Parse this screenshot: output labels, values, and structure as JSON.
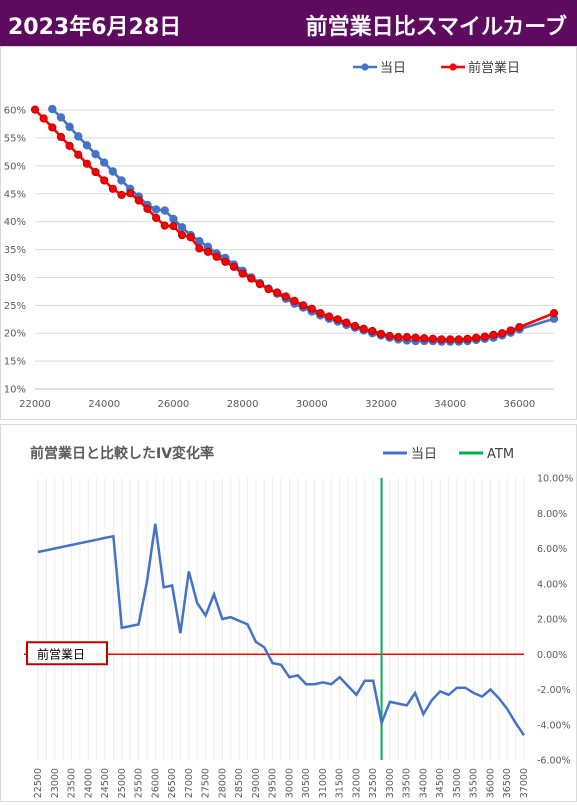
{
  "header": {
    "date": "2023年6月28日",
    "title": "前営業日比スマイルカーブ"
  },
  "colors": {
    "header_bg": "#5e0a5e",
    "today": "#4472c4",
    "prev": "#ff0000",
    "atm": "#00b050",
    "line2": "#4472c4"
  },
  "chart_data": [
    {
      "type": "line",
      "title": "",
      "legend_position": "top-right",
      "grid": true,
      "xlim": [
        22000,
        37000
      ],
      "ylim": [
        10,
        62
      ],
      "x_ticks": [
        "22000",
        "24000",
        "26000",
        "28000",
        "30000",
        "32000",
        "34000",
        "36000"
      ],
      "y_ticks": [
        "10%",
        "15%",
        "20%",
        "25%",
        "30%",
        "35%",
        "40%",
        "45%",
        "50%",
        "55%",
        "60%"
      ],
      "series": [
        {
          "name": "当日",
          "x": [
            22500,
            22750,
            23000,
            23250,
            23500,
            23750,
            24000,
            24250,
            24500,
            24750,
            25000,
            25250,
            25500,
            25750,
            26000,
            26250,
            26500,
            26750,
            27000,
            27250,
            27500,
            27750,
            28000,
            28250,
            28500,
            28750,
            29000,
            29250,
            29500,
            29750,
            30000,
            30250,
            30500,
            30750,
            31000,
            31250,
            31500,
            31750,
            32000,
            32250,
            32500,
            32750,
            33000,
            33250,
            33500,
            33750,
            34000,
            34250,
            34500,
            34750,
            35000,
            35250,
            35500,
            35750,
            36000,
            37000
          ],
          "y": [
            60.2,
            58.7,
            57.0,
            55.3,
            53.7,
            52.1,
            50.6,
            49.0,
            47.4,
            45.9,
            44.5,
            43.0,
            42.2,
            42.0,
            40.5,
            39.0,
            37.6,
            36.5,
            35.5,
            34.3,
            33.5,
            32.3,
            31.2,
            30.0,
            29.0,
            28.0,
            27.1,
            26.2,
            25.3,
            24.6,
            23.9,
            23.2,
            22.6,
            22.1,
            21.5,
            21.0,
            20.5,
            20.0,
            19.6,
            19.2,
            18.9,
            18.7,
            18.6,
            18.6,
            18.6,
            18.5,
            18.5,
            18.5,
            18.6,
            18.8,
            19.0,
            19.2,
            19.6,
            20.1,
            20.7,
            22.6
          ]
        },
        {
          "name": "前営業日",
          "x": [
            22000,
            22250,
            22500,
            22750,
            23000,
            23250,
            23500,
            23750,
            24000,
            24250,
            24500,
            24750,
            25000,
            25250,
            25500,
            25750,
            26000,
            26250,
            26500,
            26750,
            27000,
            27250,
            27500,
            27750,
            28000,
            28250,
            28500,
            28750,
            29000,
            29250,
            29500,
            29750,
            30000,
            30250,
            30500,
            30750,
            31000,
            31250,
            31500,
            31750,
            32000,
            32250,
            32500,
            32750,
            33000,
            33250,
            33500,
            33750,
            34000,
            34250,
            34500,
            34750,
            35000,
            35250,
            35500,
            35750,
            36000,
            37000
          ],
          "y": [
            60.1,
            58.5,
            56.9,
            55.2,
            53.6,
            52.0,
            50.4,
            48.9,
            47.4,
            45.9,
            44.8,
            45.1,
            43.8,
            42.3,
            40.7,
            39.3,
            39.2,
            37.6,
            37.2,
            35.2,
            34.6,
            33.7,
            32.8,
            31.9,
            30.7,
            29.8,
            28.8,
            27.9,
            27.3,
            26.6,
            25.8,
            25.0,
            24.4,
            23.6,
            23.0,
            22.5,
            21.9,
            21.3,
            20.8,
            20.4,
            19.9,
            19.5,
            19.3,
            19.3,
            19.2,
            19.1,
            19.0,
            18.9,
            18.9,
            18.9,
            19.0,
            19.2,
            19.4,
            19.7,
            20.0,
            20.5,
            21.1,
            23.6
          ]
        }
      ]
    },
    {
      "type": "line",
      "title": "前営業日と比較したIV変化率",
      "legend_position": "top-right",
      "grid": true,
      "ylim": [
        -0.06,
        0.1
      ],
      "y_ticks": [
        "10.00%",
        "8.00%",
        "6.00%",
        "4.00%",
        "2.00%",
        "0.00%",
        "-2.00%",
        "-4.00%",
        "-6.00%"
      ],
      "x_ticks": [
        "22500",
        "23000",
        "23500",
        "24000",
        "24500",
        "25000",
        "25500",
        "26000",
        "26500",
        "27000",
        "27500",
        "28000",
        "28500",
        "29000",
        "29500",
        "30000",
        "30500",
        "31000",
        "31500",
        "32000",
        "32500",
        "33000",
        "33500",
        "34000",
        "34500",
        "35000",
        "35500",
        "36000",
        "36500",
        "37000"
      ],
      "atm_x": 32750,
      "baseline_label": "前営業日",
      "series": [
        {
          "name": "当日",
          "x": [
            22500,
            22750,
            23000,
            23250,
            23500,
            23750,
            24000,
            24250,
            24500,
            24750,
            25000,
            25250,
            25500,
            25750,
            26000,
            26250,
            26500,
            26750,
            27000,
            27250,
            27500,
            27750,
            28000,
            28250,
            28500,
            28750,
            29000,
            29250,
            29500,
            29750,
            30000,
            30250,
            30500,
            30750,
            31000,
            31250,
            31500,
            31750,
            32000,
            32250,
            32500,
            32750,
            33000,
            33250,
            33500,
            33750,
            34000,
            34250,
            34500,
            34750,
            35000,
            35250,
            35500,
            35750,
            36000,
            36250,
            36500,
            36750,
            37000
          ],
          "y": [
            0.058,
            0.059,
            0.06,
            0.061,
            0.062,
            0.063,
            0.064,
            0.065,
            0.066,
            0.067,
            0.015,
            0.016,
            0.017,
            0.041,
            0.074,
            0.038,
            0.039,
            0.012,
            0.047,
            0.029,
            0.022,
            0.034,
            0.02,
            0.021,
            0.019,
            0.017,
            0.007,
            0.004,
            -0.005,
            -0.006,
            -0.013,
            -0.012,
            -0.017,
            -0.017,
            -0.016,
            -0.017,
            -0.013,
            -0.018,
            -0.023,
            -0.015,
            -0.015,
            -0.039,
            -0.027,
            -0.028,
            -0.029,
            -0.022,
            -0.034,
            -0.026,
            -0.021,
            -0.023,
            -0.019,
            -0.019,
            -0.022,
            -0.024,
            -0.02,
            -0.025,
            -0.031,
            -0.039,
            -0.046
          ]
        },
        {
          "name": "ATM",
          "x": [
            32750,
            32750
          ],
          "y": [
            -0.06,
            0.1
          ]
        }
      ]
    }
  ]
}
